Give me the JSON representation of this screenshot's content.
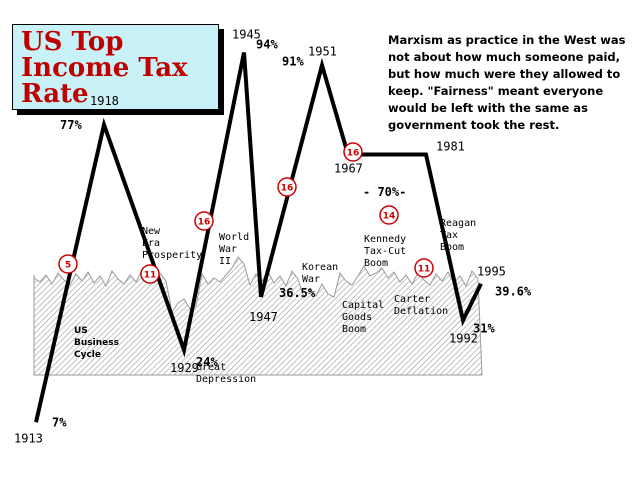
{
  "title_lines": [
    "US Top",
    "Income Tax",
    "Rate"
  ],
  "note_lines": [
    "Marxism as practice in the West was",
    "not about how much someone paid,",
    "but how much were they allowed to",
    "keep. \"Fairness\" meant everyone",
    "would be left with the same as",
    "government took the rest."
  ],
  "chart_data": {
    "type": "line",
    "title": "US Top Income Tax Rate",
    "series": [
      {
        "name": "",
        "points": [
          {
            "x": 1913,
            "y": 7,
            "year_label": "1913",
            "value_label": "7%"
          },
          {
            "x": 1918,
            "y": 77,
            "year_label": "1918",
            "value_label": "77%"
          },
          {
            "x": 1929,
            "y": 24,
            "year_label": "1929",
            "value_label": "24%"
          },
          {
            "x": 1945,
            "y": 94,
            "year_label": "1945",
            "value_label": "94%"
          },
          {
            "x": 1947,
            "y": 36.5,
            "year_label": "1947",
            "value_label": "36.5%"
          },
          {
            "x": 1951,
            "y": 91,
            "year_label": "1951",
            "value_label": "91%"
          },
          {
            "x": 1967,
            "y": 70,
            "year_label": "1967",
            "value_label": ""
          },
          {
            "x": 1981,
            "y": 70,
            "year_label": "1981",
            "value_label": ""
          },
          {
            "x": 1992,
            "y": 31,
            "year_label": "1992",
            "value_label": "31%"
          },
          {
            "x": 1995,
            "y": 39.6,
            "year_label": "1995",
            "value_label": "39.6%"
          }
        ]
      }
    ],
    "plateau_label": "- 70%-",
    "background_label": [
      "US",
      "Business",
      "Cycle"
    ],
    "annotations": [
      {
        "lines": [
          "New",
          "Era",
          "Prosperity"
        ]
      },
      {
        "lines": [
          "World",
          "War",
          "II"
        ]
      },
      {
        "lines": [
          "Great",
          "Depression"
        ]
      },
      {
        "lines": [
          "Korean",
          "War"
        ]
      },
      {
        "lines": [
          "Kennedy",
          "Tax-Cut",
          "Boom"
        ]
      },
      {
        "lines": [
          "Capital",
          "Goods",
          "Boom"
        ]
      },
      {
        "lines": [
          "Carter",
          "Deflation"
        ]
      },
      {
        "lines": [
          "Reagan",
          "Tax",
          "Boom"
        ]
      }
    ],
    "circle_markers": [
      "5",
      "11",
      "16",
      "16",
      "16",
      "14",
      "11"
    ],
    "colors": {
      "line": "#000000",
      "circle": "#cc0000",
      "title": "#c00000",
      "title_box": "#c8f2f7",
      "hatch": "#9a9a9a"
    }
  }
}
